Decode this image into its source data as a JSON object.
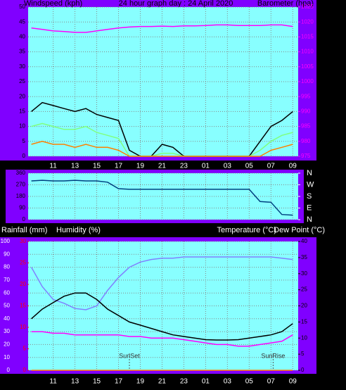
{
  "chart_data": [
    {
      "type": "line",
      "title": "24 hour graph day : 24 April 2020",
      "ylabel": "Windspeed (kph)",
      "y2label": "Barometer (hpa)",
      "x": [
        9,
        10,
        11,
        12,
        13,
        14,
        15,
        16,
        17,
        18,
        19,
        20,
        21,
        22,
        23,
        24,
        25,
        26,
        27,
        28,
        29,
        30,
        31,
        32,
        33
      ],
      "xlim": [
        8.7,
        33.5
      ],
      "xticks": [
        11,
        13,
        15,
        17,
        19,
        21,
        23,
        {
          "value": 25,
          "label": "01"
        },
        {
          "value": 27,
          "label": "03"
        },
        {
          "value": 29,
          "label": "05"
        },
        {
          "value": 31,
          "label": "07"
        },
        {
          "value": 33,
          "label": "09"
        }
      ],
      "ylim": [
        0,
        50
      ],
      "yticks": [
        0,
        5,
        10,
        15,
        20,
        25,
        30,
        35,
        40,
        45,
        50
      ],
      "y2lim": [
        975,
        1025
      ],
      "y2ticks": [
        975,
        980,
        985,
        990,
        995,
        1000,
        1005,
        1010,
        1015,
        1020,
        1025
      ],
      "grid": true,
      "series": [
        {
          "color": "#000000",
          "values": [
            15,
            18,
            17,
            16,
            15,
            16,
            14,
            13,
            12,
            2,
            0,
            0,
            4,
            3,
            0,
            0,
            0,
            0,
            0,
            0,
            0,
            5,
            10,
            12,
            15
          ]
        },
        {
          "color": "#80ff80",
          "values": [
            10,
            11,
            10,
            9,
            9,
            10,
            8,
            7,
            6,
            0,
            0,
            0,
            1,
            1,
            0,
            0,
            0,
            0,
            0,
            0,
            0,
            2,
            5,
            7,
            8
          ]
        },
        {
          "color": "#ff8000",
          "values": [
            4,
            5,
            4,
            4,
            3,
            4,
            3,
            3,
            2,
            0,
            0,
            0,
            0,
            0,
            0,
            0,
            0,
            0,
            0,
            0,
            0,
            0,
            2,
            3,
            4
          ]
        },
        {
          "color": "#ff00ff",
          "axis": "y2",
          "values": [
            1018,
            1017.5,
            1017,
            1016.8,
            1016.5,
            1016.5,
            1017,
            1017.5,
            1018,
            1018.3,
            1018.5,
            1018.5,
            1018.6,
            1018.5,
            1018.7,
            1018.7,
            1018.8,
            1019,
            1019,
            1018.8,
            1018.8,
            1018.8,
            1019,
            1019,
            1018.5
          ]
        }
      ]
    },
    {
      "type": "line",
      "x": [
        9,
        10,
        11,
        12,
        13,
        14,
        15,
        16,
        17,
        18,
        19,
        20,
        21,
        22,
        23,
        24,
        25,
        26,
        27,
        28,
        29,
        30,
        31,
        32,
        33
      ],
      "xlim": [
        8.7,
        33.5
      ],
      "ylim": [
        0,
        360
      ],
      "yticks": [
        0,
        90,
        180,
        270,
        360
      ],
      "y2lim": [
        0,
        360
      ],
      "y2ticks": [
        {
          "value": 0,
          "label": "N"
        },
        {
          "value": 90,
          "label": "E"
        },
        {
          "value": 180,
          "label": "S"
        },
        {
          "value": 270,
          "label": "W"
        },
        {
          "value": 360,
          "label": "N"
        }
      ],
      "grid": true,
      "series": [
        {
          "color": "#004080",
          "values": [
            300,
            305,
            300,
            300,
            305,
            300,
            300,
            290,
            240,
            235,
            235,
            235,
            235,
            235,
            235,
            235,
            235,
            235,
            235,
            235,
            235,
            140,
            135,
            40,
            35
          ]
        }
      ]
    },
    {
      "type": "line",
      "ylabel": "Rainfall (mm)",
      "y3label": "Humidity (%)",
      "y2label": "Temperature (°C)",
      "y2label2": "Dew Point (°C)",
      "x": [
        9,
        10,
        11,
        12,
        13,
        14,
        15,
        16,
        17,
        18,
        19,
        20,
        21,
        22,
        23,
        24,
        25,
        26,
        27,
        28,
        29,
        30,
        31,
        32,
        33
      ],
      "xlim": [
        8.7,
        33.5
      ],
      "xticks": [
        11,
        13,
        15,
        17,
        19,
        21,
        23,
        {
          "value": 25,
          "label": "01"
        },
        {
          "value": 27,
          "label": "03"
        },
        {
          "value": 29,
          "label": "05"
        },
        {
          "value": 31,
          "label": "07"
        },
        {
          "value": 33,
          "label": "09"
        }
      ],
      "ylim": [
        0,
        30
      ],
      "yticks": [
        0,
        5,
        10,
        15,
        20,
        25,
        30
      ],
      "y3lim": [
        0,
        100
      ],
      "y3ticks": [
        0,
        10,
        20,
        30,
        40,
        50,
        60,
        70,
        80,
        90,
        100
      ],
      "y2lim": [
        0,
        40
      ],
      "y2ticks": [
        0,
        5,
        10,
        15,
        20,
        25,
        30,
        35,
        40
      ],
      "grid": true,
      "annotations": [
        {
          "x": 18,
          "text": "SunSet"
        },
        {
          "x": 31.2,
          "text": "SunRise"
        }
      ],
      "series": [
        {
          "color": "#8080ff",
          "axis": "y3",
          "values": [
            80,
            65,
            55,
            52,
            48,
            47,
            50,
            62,
            72,
            80,
            84,
            86,
            87,
            87,
            88,
            88,
            88,
            88,
            88,
            88,
            88,
            88,
            88,
            87,
            86
          ]
        },
        {
          "color": "#000000",
          "axis": "y2",
          "values": [
            16,
            19,
            21,
            23,
            24,
            24,
            22,
            19,
            17,
            15,
            14,
            13,
            12,
            11,
            10.5,
            10,
            9.5,
            9.4,
            9.4,
            9.5,
            10,
            10.5,
            11,
            12,
            14.5
          ]
        },
        {
          "color": "#ff00ff",
          "axis": "y2",
          "values": [
            12,
            12,
            11.5,
            11.5,
            11,
            11,
            11,
            11,
            11,
            10.5,
            10.5,
            10,
            10,
            10,
            9.5,
            9,
            8.5,
            8,
            8,
            7.5,
            7.5,
            8,
            8.5,
            9,
            11
          ]
        },
        {
          "color": "#ff8000",
          "values": [
            0,
            0,
            0,
            0,
            0,
            0,
            0,
            0,
            0,
            0,
            0,
            0,
            0,
            0,
            0,
            0,
            0,
            0,
            0,
            0,
            0,
            0,
            0,
            0,
            0
          ]
        }
      ]
    }
  ]
}
